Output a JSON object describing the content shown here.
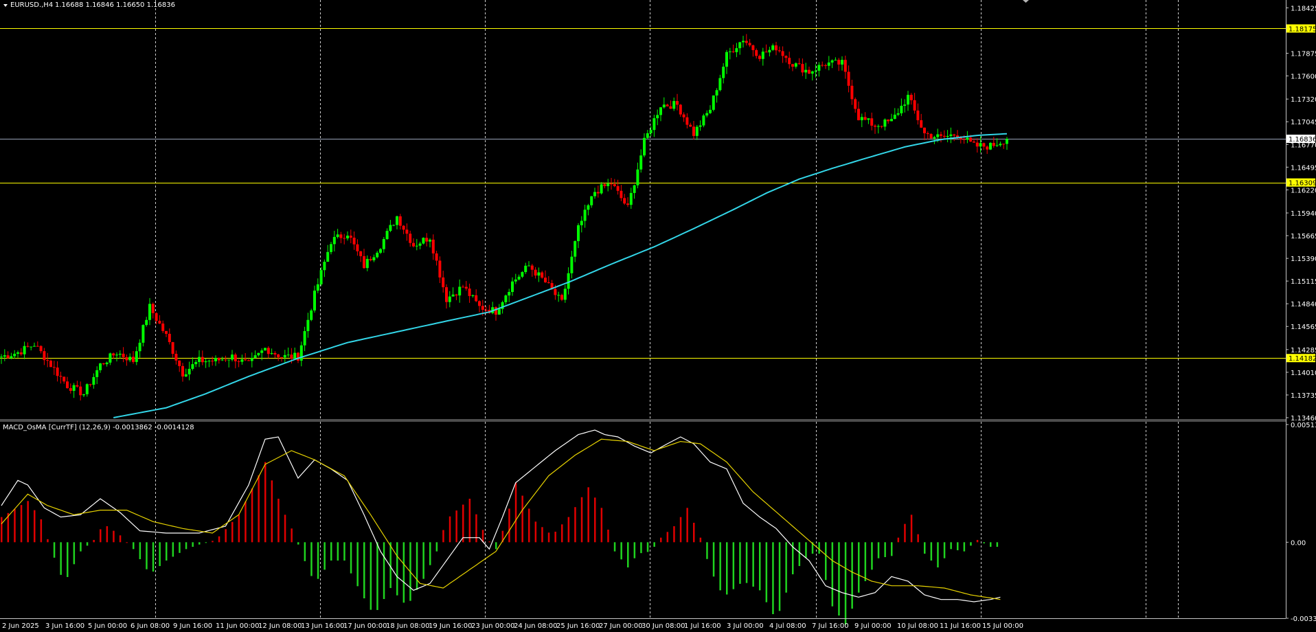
{
  "header": {
    "symbol": "EURUSD.,H4",
    "ohlc": "1.16688 1.16846 1.16650 1.16836"
  },
  "indicator_header": "MACD_OsMA [CurrTF] (12,26,9) -0.0013862 -0.0014128",
  "colors": {
    "background": "#000000",
    "bull_candle": "#00ff00",
    "bear_candle": "#ff0000",
    "ma_line": "#33d6e8",
    "level_line": "#ffff00",
    "price_line": "#9aa4b8",
    "macd_line": "#ffffff",
    "signal_line": "#e6d200",
    "osma_positive": "#e00000",
    "osma_negative": "#1fd31f"
  },
  "chart_data": [
    {
      "type": "candlestick",
      "symbol": "EURUSD.",
      "timeframe": "H4",
      "ylim": [
        1.1346,
        1.1852
      ],
      "y_ticks": [
        1.18425,
        1.17875,
        1.176,
        1.1732,
        1.17045,
        1.1677,
        1.16495,
        1.1622,
        1.1594,
        1.15665,
        1.1539,
        1.15115,
        1.1484,
        1.14565,
        1.14285,
        1.1401,
        1.13735,
        1.1346
      ],
      "y_tick_labels": [
        "1.18425",
        "1.17875",
        "1.17600",
        "1.17320",
        "1.17045",
        "1.16770",
        "1.16495",
        "1.16220",
        "1.15940",
        "1.15665",
        "1.15390",
        "1.15115",
        "1.14840",
        "1.14565",
        "1.14285",
        "1.14010",
        "1.13735",
        "1.13460"
      ],
      "x_labels": [
        "2 Jun 2025",
        "3 Jun 16:00",
        "5 Jun 00:00",
        "6 Jun 08:00",
        "9 Jun 16:00",
        "11 Jun 00:00",
        "12 Jun 08:00",
        "13 Jun 16:00",
        "17 Jun 00:00",
        "18 Jun 08:00",
        "19 Jun 16:00",
        "23 Jun 00:00",
        "24 Jun 08:00",
        "25 Jun 16:00",
        "27 Jun 00:00",
        "30 Jun 08:00",
        "1 Jul 16:00",
        "3 Jul 00:00",
        "4 Jul 08:00",
        "7 Jul 16:00",
        "9 Jul 00:00",
        "10 Jul 08:00",
        "11 Jul 16:00",
        "15 Jul 00:00"
      ],
      "levels": [
        {
          "label": "1.18175",
          "value": 1.18175
        },
        {
          "label": "1.16309",
          "value": 1.16309
        },
        {
          "label": "1.14182",
          "value": 1.14182
        }
      ],
      "current_price": {
        "label": "1.16836",
        "value": 1.16836
      },
      "candles": {
        "anchor": [
          1.142,
          1.1425,
          1.1435,
          1.141,
          1.1385,
          1.1375,
          1.141,
          1.1425,
          1.1415,
          1.148,
          1.1445,
          1.14,
          1.1415,
          1.1415,
          1.142,
          1.141,
          1.143,
          1.142,
          1.142,
          1.1495,
          1.156,
          1.157,
          1.153,
          1.1555,
          1.159,
          1.1555,
          1.1565,
          1.149,
          1.1505,
          1.148,
          1.1475,
          1.151,
          1.153,
          1.151,
          1.1485,
          1.1575,
          1.162,
          1.163,
          1.16,
          1.168,
          1.1725,
          1.1725,
          1.169,
          1.172,
          1.1785,
          1.1805,
          1.1785,
          1.1795,
          1.1775,
          1.1765,
          1.1775,
          1.1775,
          1.171,
          1.17,
          1.1705,
          1.1735,
          1.169,
          1.1685,
          1.169,
          1.1675,
          1.1675,
          1.1684
        ],
        "amplitude": 0.001,
        "seed": 7
      },
      "moving_average": {
        "start_index": 34,
        "points": [
          [
            34,
            1.1346
          ],
          [
            50,
            1.1358
          ],
          [
            62,
            1.1375
          ],
          [
            75,
            1.1396
          ],
          [
            90,
            1.1418
          ],
          [
            105,
            1.1437
          ],
          [
            120,
            1.145
          ],
          [
            135,
            1.1463
          ],
          [
            148,
            1.1474
          ],
          [
            160,
            1.1492
          ],
          [
            172,
            1.151
          ],
          [
            185,
            1.1532
          ],
          [
            198,
            1.1553
          ],
          [
            210,
            1.1575
          ],
          [
            222,
            1.1598
          ],
          [
            232,
            1.1618
          ],
          [
            242,
            1.1635
          ],
          [
            252,
            1.1648
          ],
          [
            262,
            1.166
          ],
          [
            274,
            1.1674
          ],
          [
            285,
            1.1683
          ],
          [
            296,
            1.1688
          ],
          [
            305,
            1.169
          ]
        ]
      }
    },
    {
      "type": "histogram+line",
      "name": "MACD_OsMA [CurrTF] (12,26,9)",
      "ylim": [
        -0.00332,
        0.005139
      ],
      "y_ticks": [
        0.005139,
        0.0,
        -0.00332
      ],
      "y_tick_labels": [
        "0.0051394",
        "0.00",
        "-0.003320"
      ],
      "osma": [
        [
          0,
          0.0011
        ],
        [
          8,
          0.0018
        ],
        [
          12,
          0.001
        ],
        [
          15,
          -0.0003
        ],
        [
          19,
          -0.0018
        ],
        [
          24,
          -0.0004
        ],
        [
          28,
          0.0001
        ],
        [
          31,
          0.0008
        ],
        [
          36,
          0.0003
        ],
        [
          40,
          -0.0003
        ],
        [
          45,
          -0.0014
        ],
        [
          50,
          -0.0008
        ],
        [
          56,
          -0.0003
        ],
        [
          60,
          -0.0001
        ],
        [
          65,
          0.0001
        ],
        [
          72,
          0.0012
        ],
        [
          80,
          0.0035
        ],
        [
          85,
          0.0015
        ],
        [
          89,
          0.0003
        ],
        [
          91,
          -0.0005
        ],
        [
          95,
          -0.0018
        ],
        [
          100,
          -0.0008
        ],
        [
          104,
          -0.0008
        ],
        [
          109,
          -0.0022
        ],
        [
          113,
          -0.0032
        ],
        [
          118,
          -0.002
        ],
        [
          123,
          -0.0028
        ],
        [
          128,
          -0.0016
        ],
        [
          132,
          -0.0004
        ],
        [
          135,
          0.001
        ],
        [
          142,
          0.0019
        ],
        [
          147,
          0.0002
        ],
        [
          150,
          -0.0003
        ],
        [
          153,
          0.0009
        ],
        [
          156,
          0.0026
        ],
        [
          162,
          0.0009
        ],
        [
          167,
          0.0003
        ],
        [
          172,
          0.0011
        ],
        [
          178,
          0.0024
        ],
        [
          182,
          0.0015
        ],
        [
          186,
          -0.0004
        ],
        [
          190,
          -0.0011
        ],
        [
          193,
          -0.0005
        ],
        [
          197,
          -0.0004
        ],
        [
          200,
          0.0002
        ],
        [
          204,
          0.0007
        ],
        [
          208,
          0.0015
        ],
        [
          212,
          0.0002
        ],
        [
          215,
          -0.0012
        ],
        [
          219,
          -0.0024
        ],
        [
          225,
          -0.0017
        ],
        [
          230,
          -0.0021
        ],
        [
          235,
          -0.0034
        ],
        [
          240,
          -0.0014
        ],
        [
          245,
          -0.0005
        ],
        [
          248,
          -0.0005
        ],
        [
          252,
          -0.0028
        ],
        [
          256,
          -0.0036
        ],
        [
          260,
          -0.0022
        ],
        [
          266,
          -0.0007
        ],
        [
          270,
          -0.0006
        ],
        [
          273,
          0.0006
        ],
        [
          276,
          0.0012
        ],
        [
          280,
          -0.0005
        ],
        [
          284,
          -0.0011
        ],
        [
          288,
          -0.0003
        ],
        [
          292,
          -0.0004
        ],
        [
          296,
          0.0001
        ],
        [
          300,
          -0.0002
        ],
        [
          303,
          -0.0002
        ]
      ],
      "macd_line": [
        [
          0,
          0.0016
        ],
        [
          5,
          0.0027
        ],
        [
          8,
          0.0025
        ],
        [
          13,
          0.0015
        ],
        [
          18,
          0.0011
        ],
        [
          24,
          0.0012
        ],
        [
          30,
          0.0019
        ],
        [
          36,
          0.0013
        ],
        [
          42,
          0.0005
        ],
        [
          50,
          0.0004
        ],
        [
          60,
          0.0004
        ],
        [
          68,
          0.0007
        ],
        [
          75,
          0.0025
        ],
        [
          80,
          0.0045
        ],
        [
          84,
          0.0046
        ],
        [
          87,
          0.0037
        ],
        [
          90,
          0.0028
        ],
        [
          95,
          0.0036
        ],
        [
          100,
          0.0032
        ],
        [
          105,
          0.0027
        ],
        [
          110,
          0.0012
        ],
        [
          115,
          -0.0004
        ],
        [
          120,
          -0.0015
        ],
        [
          125,
          -0.0021
        ],
        [
          130,
          -0.0018
        ],
        [
          135,
          -0.0008
        ],
        [
          140,
          0.0002
        ],
        [
          145,
          0.0002
        ],
        [
          148,
          -0.0003
        ],
        [
          152,
          0.0011
        ],
        [
          156,
          0.0026
        ],
        [
          162,
          0.0033
        ],
        [
          168,
          0.004
        ],
        [
          175,
          0.0047
        ],
        [
          180,
          0.0049
        ],
        [
          183,
          0.0047
        ],
        [
          187,
          0.0046
        ],
        [
          192,
          0.0042
        ],
        [
          197,
          0.0039
        ],
        [
          202,
          0.0043
        ],
        [
          206,
          0.0046
        ],
        [
          210,
          0.0043
        ],
        [
          215,
          0.0035
        ],
        [
          220,
          0.0032
        ],
        [
          225,
          0.0017
        ],
        [
          230,
          0.0011
        ],
        [
          235,
          0.0006
        ],
        [
          240,
          -0.0002
        ],
        [
          245,
          -0.0008
        ],
        [
          250,
          -0.0019
        ],
        [
          255,
          -0.0022
        ],
        [
          260,
          -0.0024
        ],
        [
          265,
          -0.0022
        ],
        [
          270,
          -0.0015
        ],
        [
          275,
          -0.0017
        ],
        [
          280,
          -0.0023
        ],
        [
          285,
          -0.0025
        ],
        [
          290,
          -0.0025
        ],
        [
          295,
          -0.0026
        ],
        [
          300,
          -0.0025
        ],
        [
          303,
          -0.0024
        ]
      ],
      "signal_line": [
        [
          0,
          0.0008
        ],
        [
          8,
          0.0021
        ],
        [
          14,
          0.0016
        ],
        [
          22,
          0.0012
        ],
        [
          30,
          0.0014
        ],
        [
          38,
          0.0014
        ],
        [
          46,
          0.0009
        ],
        [
          55,
          0.0006
        ],
        [
          64,
          0.0004
        ],
        [
          72,
          0.0012
        ],
        [
          80,
          0.0034
        ],
        [
          88,
          0.004
        ],
        [
          95,
          0.0036
        ],
        [
          104,
          0.0029
        ],
        [
          112,
          0.0012
        ],
        [
          120,
          -0.0006
        ],
        [
          127,
          -0.0018
        ],
        [
          134,
          -0.002
        ],
        [
          142,
          -0.0012
        ],
        [
          150,
          -0.0004
        ],
        [
          158,
          0.0014
        ],
        [
          166,
          0.0029
        ],
        [
          174,
          0.0038
        ],
        [
          182,
          0.0045
        ],
        [
          190,
          0.0044
        ],
        [
          198,
          0.004
        ],
        [
          206,
          0.0044
        ],
        [
          212,
          0.0043
        ],
        [
          220,
          0.0035
        ],
        [
          228,
          0.0022
        ],
        [
          236,
          0.0012
        ],
        [
          244,
          0.0002
        ],
        [
          252,
          -0.0008
        ],
        [
          258,
          -0.0013
        ],
        [
          264,
          -0.0017
        ],
        [
          270,
          -0.0019
        ],
        [
          278,
          -0.0019
        ],
        [
          286,
          -0.002
        ],
        [
          294,
          -0.0023
        ],
        [
          303,
          -0.0025
        ]
      ]
    }
  ]
}
